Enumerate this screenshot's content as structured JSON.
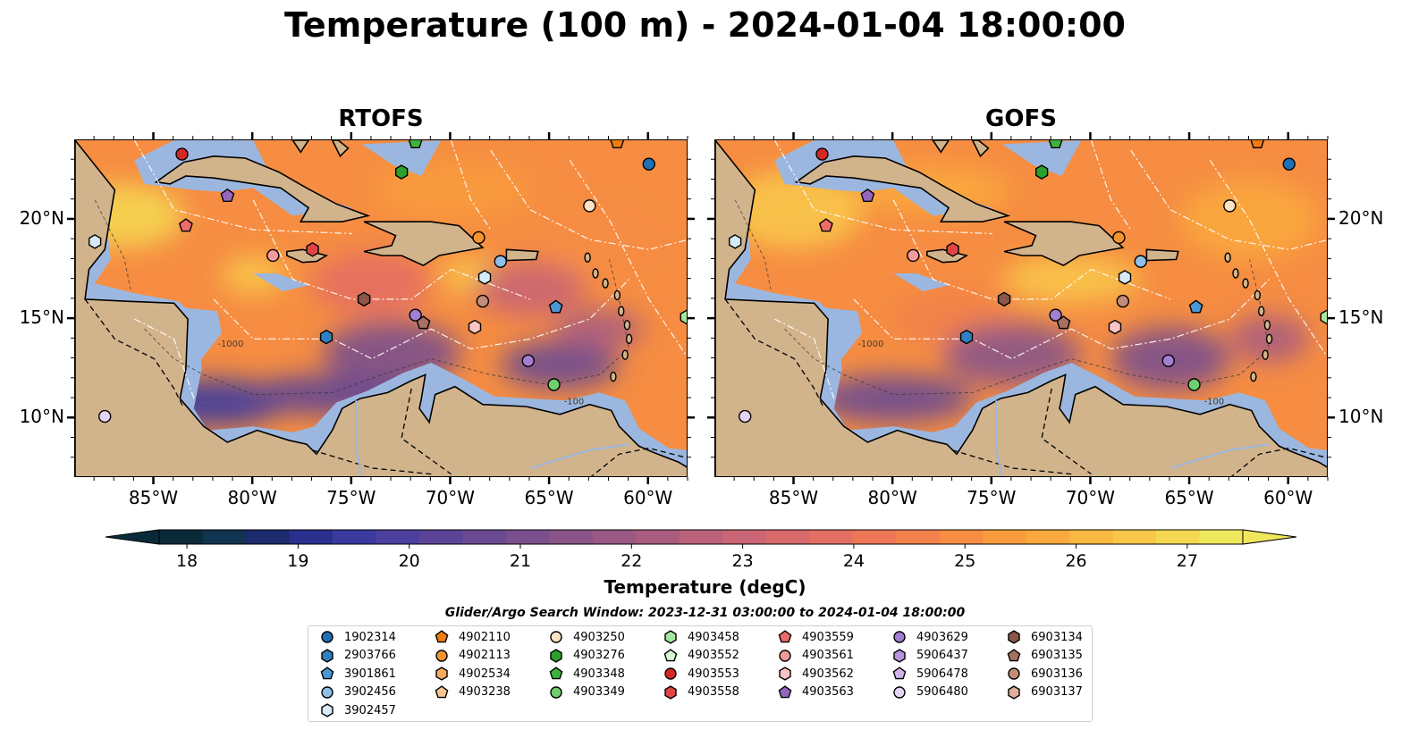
{
  "title": "Temperature (100 m) - 2024-01-04 18:00:00",
  "panels": [
    {
      "id": "rtofs",
      "title": "RTOFS"
    },
    {
      "id": "gofs",
      "title": "GOFS"
    }
  ],
  "map": {
    "lon_range": [
      -89,
      -58
    ],
    "lat_range": [
      7,
      24
    ],
    "lon_ticks": [
      "85°W",
      "80°W",
      "75°W",
      "70°W",
      "65°W",
      "60°W"
    ],
    "lat_ticks": [
      "20°N",
      "15°N",
      "10°N"
    ],
    "land_color": "#d2b48c",
    "shelf_color": "#9bb7e0",
    "bathymetry_labels": [
      "-100",
      "-1000"
    ]
  },
  "colorbar": {
    "label": "Temperature (degC)",
    "ticks": [
      "18",
      "19",
      "20",
      "21",
      "22",
      "23",
      "24",
      "25",
      "26",
      "27"
    ],
    "min": 17.75,
    "max": 27.5,
    "colors": [
      "#0a2a3a",
      "#10334f",
      "#1c2a6e",
      "#2a2f8e",
      "#3a3a9e",
      "#4c3f9e",
      "#5b4497",
      "#6a4a92",
      "#7a4f8d",
      "#8a5488",
      "#9a5884",
      "#aa5c7f",
      "#bb617a",
      "#c96574",
      "#d86a6c",
      "#e36f62",
      "#ec7656",
      "#f2814b",
      "#f68d42",
      "#f89b3d",
      "#f9a93d",
      "#f9b841",
      "#f8c74a",
      "#f5d752",
      "#f0e85c"
    ]
  },
  "legend": {
    "title": "Glider/Argo Search Window: 2023-12-31 03:00:00 to 2024-01-04 18:00:00",
    "items": [
      {
        "id": "1902314",
        "shape": "circle",
        "color": "#1f6fb4"
      },
      {
        "id": "2903766",
        "shape": "hexagon",
        "color": "#2f80c0"
      },
      {
        "id": "3901861",
        "shape": "pentagon",
        "color": "#4a97d4"
      },
      {
        "id": "3902456",
        "shape": "circle",
        "color": "#8ec0ea"
      },
      {
        "id": "3902457",
        "shape": "hexagon",
        "color": "#d6eaf8"
      },
      {
        "id": "4902110",
        "shape": "pentagon",
        "color": "#f07c10"
      },
      {
        "id": "4902113",
        "shape": "circle",
        "color": "#f5932d"
      },
      {
        "id": "4902534",
        "shape": "hexagon",
        "color": "#f7ab5e"
      },
      {
        "id": "4903238",
        "shape": "pentagon",
        "color": "#f9c691"
      },
      {
        "id": "4903250",
        "shape": "circle",
        "color": "#fde2c4"
      },
      {
        "id": "4903276",
        "shape": "hexagon",
        "color": "#2ca02c"
      },
      {
        "id": "4903348",
        "shape": "pentagon",
        "color": "#3cb43c"
      },
      {
        "id": "4903349",
        "shape": "circle",
        "color": "#6fcf6f"
      },
      {
        "id": "4903458",
        "shape": "hexagon",
        "color": "#a6e6a0"
      },
      {
        "id": "4903552",
        "shape": "pentagon",
        "color": "#d6f5d2"
      },
      {
        "id": "4903553",
        "shape": "circle",
        "color": "#d62728"
      },
      {
        "id": "4903558",
        "shape": "hexagon",
        "color": "#e14545"
      },
      {
        "id": "4903559",
        "shape": "pentagon",
        "color": "#ee6b6b"
      },
      {
        "id": "4903561",
        "shape": "circle",
        "color": "#f59b9b"
      },
      {
        "id": "4903562",
        "shape": "hexagon",
        "color": "#f9c6c6"
      },
      {
        "id": "4903563",
        "shape": "pentagon",
        "color": "#9467bd"
      },
      {
        "id": "4903629",
        "shape": "circle",
        "color": "#a47ed0"
      },
      {
        "id": "5906437",
        "shape": "hexagon",
        "color": "#b995e0"
      },
      {
        "id": "5906478",
        "shape": "pentagon",
        "color": "#cfb4ec"
      },
      {
        "id": "5906480",
        "shape": "circle",
        "color": "#e6d4f6"
      },
      {
        "id": "6903134",
        "shape": "hexagon",
        "color": "#8c564b"
      },
      {
        "id": "6903135",
        "shape": "pentagon",
        "color": "#a87060"
      },
      {
        "id": "6903136",
        "shape": "circle",
        "color": "#c48c7a"
      },
      {
        "id": "6903137",
        "shape": "hexagon",
        "color": "#e0ad9c"
      }
    ]
  },
  "markers": [
    {
      "id": "4903553",
      "lon": -83.6,
      "lat": 23.3
    },
    {
      "id": "4903348",
      "lon": -71.8,
      "lat": 23.9
    },
    {
      "id": "4902110",
      "lon": -61.6,
      "lat": 23.9
    },
    {
      "id": "1902314",
      "lon": -60.0,
      "lat": 22.8
    },
    {
      "id": "4903276",
      "lon": -72.5,
      "lat": 22.4
    },
    {
      "id": "4903563",
      "lon": -81.3,
      "lat": 21.2
    },
    {
      "id": "4903250",
      "lon": -63.0,
      "lat": 20.7
    },
    {
      "id": "4903559",
      "lon": -83.4,
      "lat": 19.7
    },
    {
      "id": "3902457",
      "lon": -88.0,
      "lat": 18.9
    },
    {
      "id": "4902113",
      "lon": -68.6,
      "lat": 19.1
    },
    {
      "id": "4903558",
      "lon": -77.0,
      "lat": 18.5
    },
    {
      "id": "4903561",
      "lon": -79.0,
      "lat": 18.2
    },
    {
      "id": "3902456",
      "lon": -67.5,
      "lat": 17.9
    },
    {
      "id": "3902457",
      "lon": -68.3,
      "lat": 17.1
    },
    {
      "id": "6903134",
      "lon": -74.4,
      "lat": 16.0
    },
    {
      "id": "6903136",
      "lon": -68.4,
      "lat": 15.9
    },
    {
      "id": "3901861",
      "lon": -64.7,
      "lat": 15.6
    },
    {
      "id": "4903629",
      "lon": -71.8,
      "lat": 15.2
    },
    {
      "id": "6903135",
      "lon": -71.4,
      "lat": 14.8
    },
    {
      "id": "4903562",
      "lon": -68.8,
      "lat": 14.6
    },
    {
      "id": "2903766",
      "lon": -76.3,
      "lat": 14.1
    },
    {
      "id": "4903629",
      "lon": -66.1,
      "lat": 12.9
    },
    {
      "id": "4903349",
      "lon": -64.8,
      "lat": 11.7
    },
    {
      "id": "5906480",
      "lon": -87.5,
      "lat": 10.1
    },
    {
      "id": "4903458",
      "lon": -58.1,
      "lat": 15.1
    }
  ]
}
